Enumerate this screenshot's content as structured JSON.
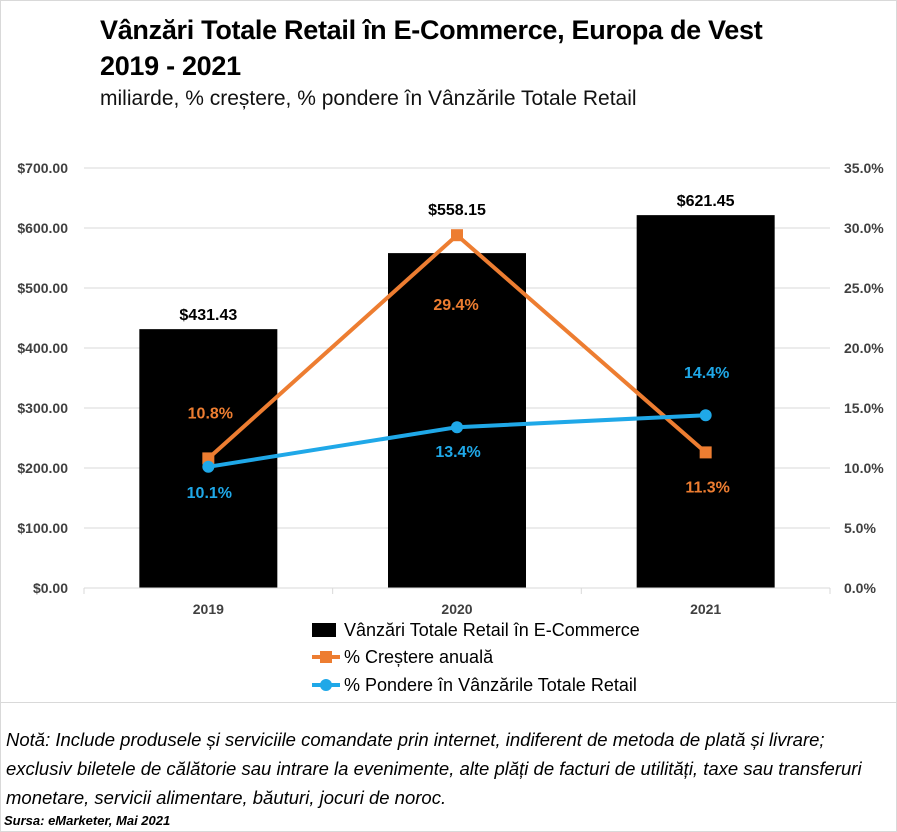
{
  "title_line1": "Vânzări Totale Retail în E-Commerce, Europa de Vest",
  "title_line2": "2019 - 2021",
  "subtitle": "miliarde, % creștere, % pondere în Vânzările Totale Retail",
  "note": "Notă: Include produsele și serviciile comandate prin internet, indiferent de metoda de plată și livrare; exclusiv biletele de călătorie sau intrare la evenimente, alte plăți de facturi de utilități, taxe sau transferuri monetare, servicii alimentare, băuturi, jocuri de noroc.",
  "source": "Sursa: eMarketer, Mai 2021",
  "colors": {
    "bars": "#000000",
    "growth": "#ed7d31",
    "share": "#1fa8e8",
    "grid": "#d9d9d9",
    "tick_text": "#404040"
  },
  "chart_data": {
    "type": "bar",
    "categories": [
      "2019",
      "2020",
      "2021"
    ],
    "series": [
      {
        "name": "Vânzări Totale Retail în E-Commerce",
        "type": "bar",
        "axis": "left",
        "values": [
          431.43,
          558.15,
          621.45
        ],
        "labels": [
          "$431.43",
          "$558.15",
          "$621.45"
        ]
      },
      {
        "name": "% Creștere anuală",
        "type": "line",
        "marker": "square",
        "axis": "right",
        "values": [
          10.8,
          29.4,
          11.3
        ],
        "labels": [
          "10.8%",
          "29.4%",
          "11.3%"
        ]
      },
      {
        "name": "% Pondere în Vânzările Totale Retail",
        "type": "line",
        "marker": "circle",
        "axis": "right",
        "values": [
          10.1,
          13.4,
          14.4
        ],
        "labels": [
          "10.1%",
          "13.4%",
          "14.4%"
        ]
      }
    ],
    "y_left": {
      "min": 0,
      "max": 700,
      "ticks": [
        "$0.00",
        "$100.00",
        "$200.00",
        "$300.00",
        "$400.00",
        "$500.00",
        "$600.00",
        "$700.00"
      ]
    },
    "y_right": {
      "min": 0,
      "max": 35,
      "ticks": [
        "0.0%",
        "5.0%",
        "10.0%",
        "15.0%",
        "20.0%",
        "25.0%",
        "30.0%",
        "35.0%"
      ]
    },
    "grid": true,
    "legend_position": "bottom"
  }
}
